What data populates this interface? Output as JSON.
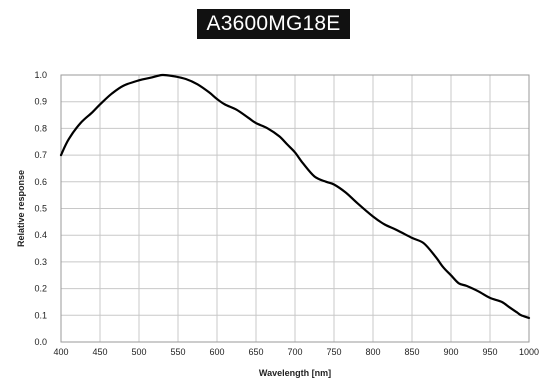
{
  "title": "A3600MG18E",
  "chart_data": {
    "type": "line",
    "title": "A3600MG18E",
    "xlabel": "Wavelength [nm]",
    "ylabel": "Relative response",
    "xlim": [
      400,
      1000
    ],
    "ylim": [
      0.0,
      1.0
    ],
    "grid": true,
    "x_ticks": [
      400,
      450,
      500,
      550,
      600,
      650,
      700,
      750,
      800,
      850,
      900,
      950,
      1000
    ],
    "y_ticks": [
      0.0,
      0.1,
      0.2,
      0.3,
      0.4,
      0.5,
      0.6,
      0.7,
      0.8,
      0.9,
      1.0
    ],
    "x_tick_labels": [
      "400",
      "450",
      "500",
      "550",
      "600",
      "650",
      "700",
      "750",
      "800",
      "850",
      "900",
      "950",
      "1000"
    ],
    "y_tick_labels": [
      "0.0",
      "0.1",
      "0.2",
      "0.3",
      "0.4",
      "0.5",
      "0.6",
      "0.7",
      "0.8",
      "0.9",
      "1.0"
    ],
    "series": [
      {
        "color": "#000000",
        "x": [
          400,
          410,
          425,
          440,
          450,
          465,
          480,
          500,
          515,
          530,
          545,
          560,
          575,
          590,
          600,
          610,
          625,
          640,
          650,
          665,
          680,
          690,
          700,
          710,
          725,
          740,
          750,
          765,
          780,
          800,
          815,
          830,
          850,
          865,
          880,
          890,
          900,
          910,
          920,
          935,
          950,
          965,
          975,
          985,
          990,
          1000
        ],
        "y": [
          0.7,
          0.76,
          0.82,
          0.86,
          0.89,
          0.93,
          0.96,
          0.98,
          0.99,
          1.0,
          0.995,
          0.985,
          0.965,
          0.935,
          0.91,
          0.89,
          0.87,
          0.84,
          0.82,
          0.8,
          0.77,
          0.74,
          0.71,
          0.67,
          0.62,
          0.6,
          0.59,
          0.56,
          0.52,
          0.47,
          0.44,
          0.42,
          0.39,
          0.37,
          0.32,
          0.28,
          0.25,
          0.22,
          0.21,
          0.19,
          0.165,
          0.15,
          0.13,
          0.11,
          0.1,
          0.09
        ]
      }
    ]
  }
}
